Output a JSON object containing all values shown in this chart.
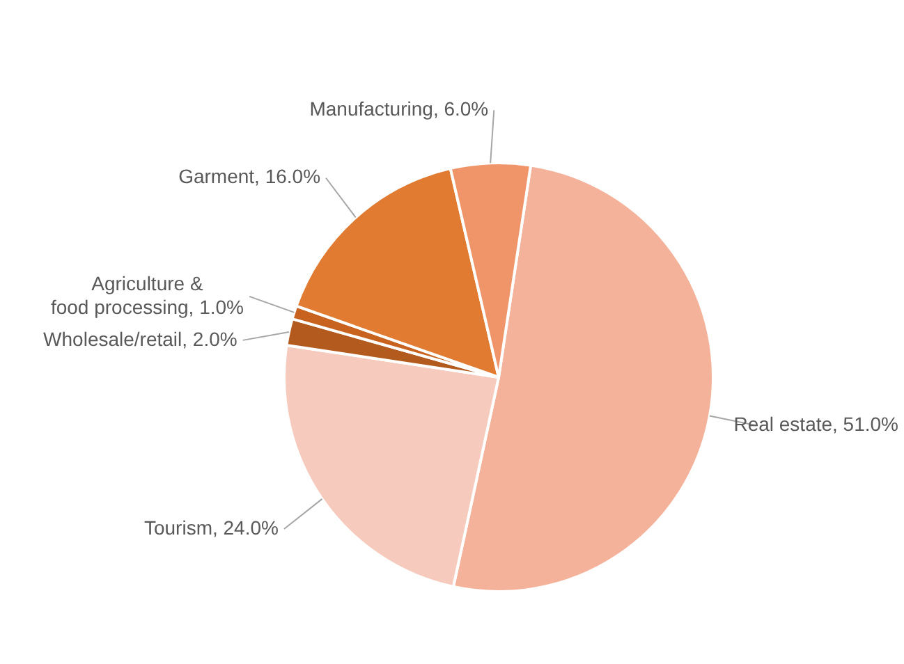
{
  "chart_data": {
    "type": "pie",
    "categories": [
      "Real estate",
      "Tourism",
      "Wholesale/retail",
      "Agriculture & food processing",
      "Garment",
      "Manufacturing"
    ],
    "values": [
      51,
      24,
      2,
      1,
      16,
      6
    ],
    "value_labels": [
      "51.0%",
      "24.0%",
      "2.0%",
      "1.0%",
      "16.0%",
      "6.0%"
    ],
    "colors": [
      "#f4b29a",
      "#f6cbbd",
      "#b35a1f",
      "#c8621f",
      "#e07b31",
      "#f0956a"
    ],
    "legend": false
  }
}
